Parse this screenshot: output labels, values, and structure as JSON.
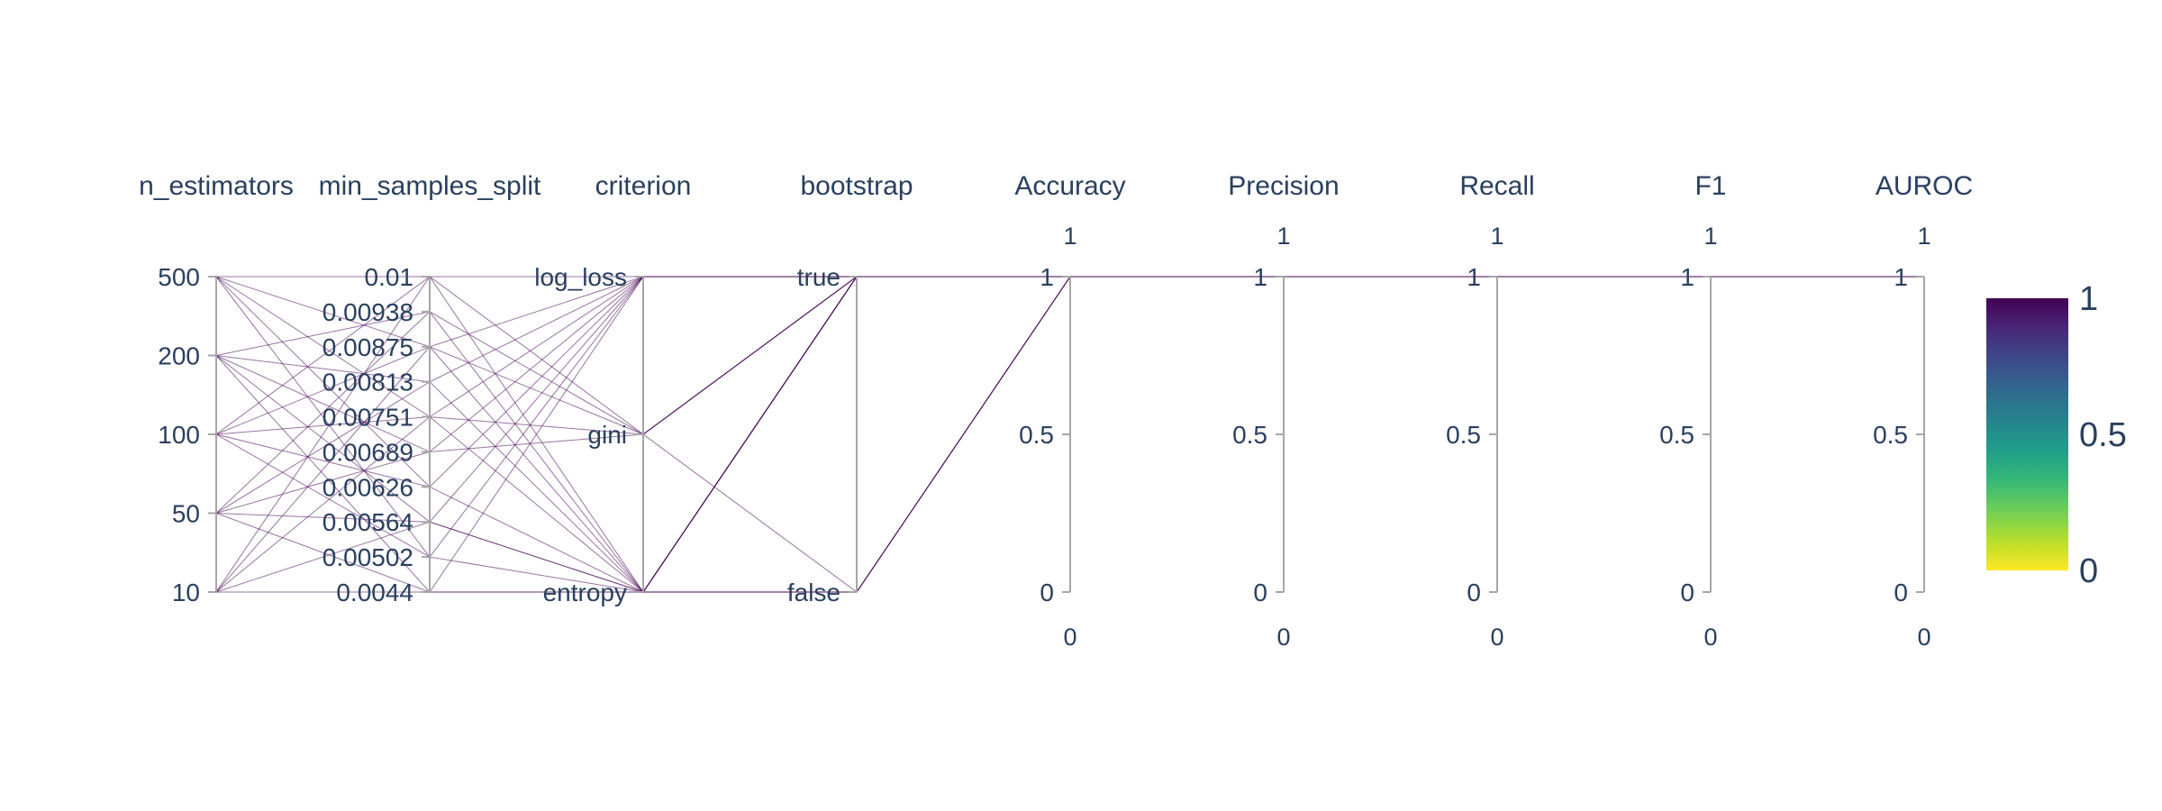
{
  "chart_data": {
    "type": "parallel_coordinates",
    "dimensions": [
      {
        "name": "n_estimators",
        "kind": "categorical",
        "ticks": [
          "10",
          "50",
          "100",
          "200",
          "500"
        ]
      },
      {
        "name": "min_samples_split",
        "kind": "categorical",
        "ticks": [
          "0.0044",
          "0.00502",
          "0.00564",
          "0.00626",
          "0.00689",
          "0.00751",
          "0.00813",
          "0.00875",
          "0.00938",
          "0.01"
        ]
      },
      {
        "name": "criterion",
        "kind": "categorical",
        "ticks": [
          "entropy",
          "gini",
          "log_loss"
        ]
      },
      {
        "name": "bootstrap",
        "kind": "categorical",
        "ticks": [
          "false",
          "true"
        ]
      },
      {
        "name": "Accuracy",
        "kind": "numeric",
        "range": [
          0,
          1
        ],
        "ticks": [
          "0",
          "0.5",
          "1"
        ],
        "range_labels": [
          "0",
          "1"
        ]
      },
      {
        "name": "Precision",
        "kind": "numeric",
        "range": [
          0,
          1
        ],
        "ticks": [
          "0",
          "0.5",
          "1"
        ],
        "range_labels": [
          "0",
          "1"
        ]
      },
      {
        "name": "Recall",
        "kind": "numeric",
        "range": [
          0,
          1
        ],
        "ticks": [
          "0",
          "0.5",
          "1"
        ],
        "range_labels": [
          "0",
          "1"
        ]
      },
      {
        "name": "F1",
        "kind": "numeric",
        "range": [
          0,
          1
        ],
        "ticks": [
          "0",
          "0.5",
          "1"
        ],
        "range_labels": [
          "0",
          "1"
        ]
      },
      {
        "name": "AUROC",
        "kind": "numeric",
        "range": [
          0,
          1
        ],
        "ticks": [
          "0",
          "0.5",
          "1"
        ],
        "range_labels": [
          "0",
          "1"
        ]
      }
    ],
    "lines": [
      [
        "500",
        "0.01",
        "log_loss",
        "true",
        1,
        1,
        1,
        1,
        1
      ],
      [
        "500",
        "0.00875",
        "gini",
        "false",
        1,
        1,
        1,
        1,
        1
      ],
      [
        "500",
        "0.00751",
        "entropy",
        "true",
        1,
        1,
        1,
        1,
        1
      ],
      [
        "500",
        "0.00626",
        "log_loss",
        "true",
        1,
        1,
        1,
        1,
        1
      ],
      [
        "500",
        "0.00502",
        "entropy",
        "false",
        1,
        1,
        1,
        1,
        1
      ],
      [
        "200",
        "0.00938",
        "entropy",
        "true",
        1,
        1,
        1,
        1,
        1
      ],
      [
        "200",
        "0.00813",
        "log_loss",
        "true",
        1,
        1,
        1,
        1,
        1
      ],
      [
        "200",
        "0.00689",
        "gini",
        "true",
        1,
        1,
        1,
        1,
        1
      ],
      [
        "200",
        "0.00564",
        "entropy",
        "false",
        1,
        1,
        1,
        1,
        1
      ],
      [
        "200",
        "0.0044",
        "log_loss",
        "true",
        1,
        1,
        1,
        1,
        1
      ],
      [
        "100",
        "0.01",
        "entropy",
        "true",
        1,
        1,
        1,
        1,
        1
      ],
      [
        "100",
        "0.00875",
        "log_loss",
        "true",
        1,
        1,
        1,
        1,
        1
      ],
      [
        "100",
        "0.00751",
        "gini",
        "true",
        1,
        1,
        1,
        1,
        1
      ],
      [
        "100",
        "0.00626",
        "entropy",
        "false",
        1,
        1,
        1,
        1,
        1
      ],
      [
        "100",
        "0.00502",
        "log_loss",
        "true",
        1,
        1,
        1,
        1,
        1
      ],
      [
        "50",
        "0.00938",
        "gini",
        "true",
        1,
        1,
        1,
        1,
        1
      ],
      [
        "50",
        "0.00813",
        "entropy",
        "false",
        1,
        1,
        1,
        1,
        1
      ],
      [
        "50",
        "0.00689",
        "log_loss",
        "true",
        1,
        1,
        1,
        1,
        1
      ],
      [
        "50",
        "0.00564",
        "entropy",
        "true",
        1,
        1,
        1,
        1,
        1
      ],
      [
        "50",
        "0.0044",
        "entropy",
        "true",
        1,
        1,
        1,
        1,
        1
      ],
      [
        "10",
        "0.01",
        "gini",
        "true",
        1,
        1,
        1,
        1,
        1
      ],
      [
        "10",
        "0.00875",
        "entropy",
        "true",
        1,
        1,
        1,
        1,
        1
      ],
      [
        "10",
        "0.00751",
        "log_loss",
        "true",
        1,
        1,
        1,
        1,
        1
      ],
      [
        "10",
        "0.00564",
        "log_loss",
        "true",
        1,
        1,
        1,
        1,
        1
      ],
      [
        "10",
        "0.0044",
        "entropy",
        "true",
        1,
        1,
        1,
        1,
        1
      ]
    ],
    "color_value": 1,
    "colorscale": [
      "#fde725",
      "#b5de2b",
      "#6ece58",
      "#35b779",
      "#1f9e89",
      "#26828e",
      "#31688e",
      "#3e4989",
      "#482878",
      "#440154"
    ],
    "line_color": "#440154",
    "colorbar": {
      "range": [
        0,
        1
      ],
      "ticks": [
        "0",
        "0.5",
        "1"
      ]
    }
  }
}
